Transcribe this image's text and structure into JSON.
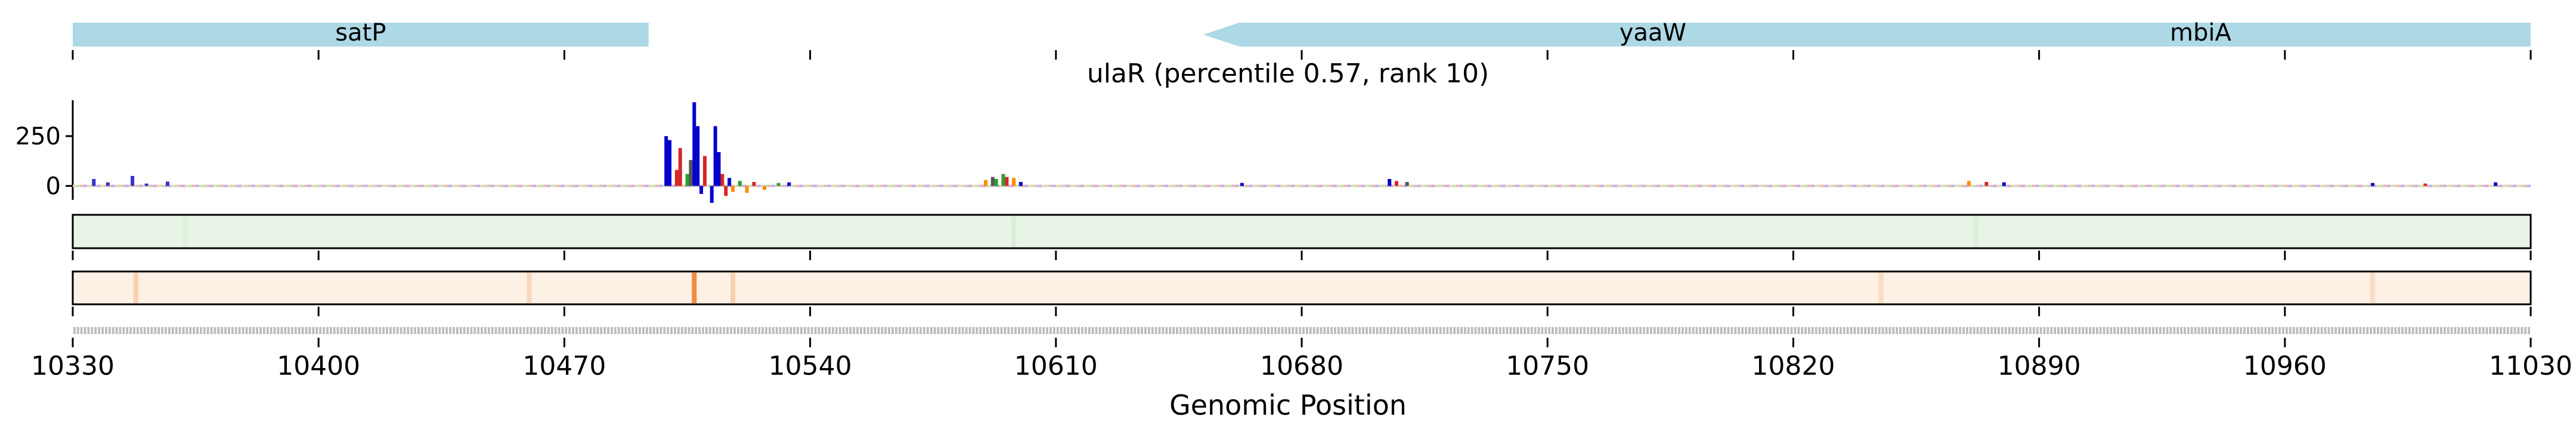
{
  "chart_data": {
    "type": "genome_track",
    "title": "ulaR (percentile 0.57, rank 10)",
    "xlabel": "Genomic Position",
    "xlim": [
      10330,
      11030
    ],
    "x_ticks": [
      10330,
      10400,
      10470,
      10540,
      10610,
      10680,
      10750,
      10820,
      10890,
      10960,
      11030
    ],
    "x_tick_labels": [
      "10330",
      "10400",
      "10470",
      "10540",
      "10610",
      "10680",
      "10750",
      "10820",
      "10890",
      "10960",
      "11030"
    ],
    "genes": [
      {
        "name": "satP",
        "start": 10330,
        "end": 10494,
        "strand": "+",
        "color": "#add8e6"
      },
      {
        "name": "yaaW",
        "start": 10652,
        "end": 11030,
        "strand": "-",
        "color": "#add8e6"
      },
      {
        "name": "mbiA",
        "start": 10830,
        "end": 11030,
        "strand": "-",
        "color": "#add8e6"
      }
    ],
    "attribution": {
      "y_ticks": [
        0,
        250
      ],
      "y_tick_labels": [
        "0",
        "250"
      ],
      "ylim": [
        -70,
        430
      ],
      "peaks": [
        {
          "x": 10336,
          "y": 35
        },
        {
          "x": 10340,
          "y": 18
        },
        {
          "x": 10347,
          "y": 50
        },
        {
          "x": 10351,
          "y": 12
        },
        {
          "x": 10357,
          "y": 22
        },
        {
          "x": 10499,
          "y": 250,
          "color": "#0000cc"
        },
        {
          "x": 10500,
          "y": 230,
          "color": "#0000cc"
        },
        {
          "x": 10502,
          "y": 80,
          "color": "#d62728"
        },
        {
          "x": 10503,
          "y": 190,
          "color": "#d62728"
        },
        {
          "x": 10505,
          "y": 60,
          "color": "#2ca02c"
        },
        {
          "x": 10506,
          "y": 130,
          "color": "#555555"
        },
        {
          "x": 10507,
          "y": 420,
          "color": "#0000cc"
        },
        {
          "x": 10508,
          "y": 300,
          "color": "#0000cc"
        },
        {
          "x": 10509,
          "y": -40,
          "color": "#0000cc"
        },
        {
          "x": 10510,
          "y": 150,
          "color": "#d62728"
        },
        {
          "x": 10512,
          "y": -85,
          "color": "#0000cc"
        },
        {
          "x": 10513,
          "y": 300,
          "color": "#0000cc"
        },
        {
          "x": 10514,
          "y": 170,
          "color": "#0000cc"
        },
        {
          "x": 10515,
          "y": 60,
          "color": "#d62728"
        },
        {
          "x": 10516,
          "y": -50,
          "color": "#d62728"
        },
        {
          "x": 10517,
          "y": 40,
          "color": "#0000cc"
        },
        {
          "x": 10518,
          "y": -30,
          "color": "#ff8c00"
        },
        {
          "x": 10520,
          "y": 25,
          "color": "#2ca02c"
        },
        {
          "x": 10522,
          "y": -35,
          "color": "#ff8c00"
        },
        {
          "x": 10524,
          "y": 20,
          "color": "#d62728"
        },
        {
          "x": 10527,
          "y": -20,
          "color": "#ff8c00"
        },
        {
          "x": 10531,
          "y": 15,
          "color": "#2ca02c"
        },
        {
          "x": 10534,
          "y": 18,
          "color": "#0000cc"
        },
        {
          "x": 10590,
          "y": 30,
          "color": "#ff8c00"
        },
        {
          "x": 10592,
          "y": 45,
          "color": "#555555"
        },
        {
          "x": 10593,
          "y": 35,
          "color": "#2ca02c"
        },
        {
          "x": 10595,
          "y": 60,
          "color": "#2ca02c"
        },
        {
          "x": 10596,
          "y": 45,
          "color": "#d62728"
        },
        {
          "x": 10598,
          "y": 40,
          "color": "#ff8c00"
        },
        {
          "x": 10600,
          "y": 20,
          "color": "#0000cc"
        },
        {
          "x": 10663,
          "y": 15,
          "color": "#0000cc"
        },
        {
          "x": 10705,
          "y": 35,
          "color": "#0000cc"
        },
        {
          "x": 10707,
          "y": 25,
          "color": "#d62728"
        },
        {
          "x": 10710,
          "y": 20,
          "color": "#555555"
        },
        {
          "x": 10870,
          "y": 25,
          "color": "#ff8c00"
        },
        {
          "x": 10875,
          "y": 20,
          "color": "#d62728"
        },
        {
          "x": 10880,
          "y": 18,
          "color": "#0000cc"
        },
        {
          "x": 10985,
          "y": 15,
          "color": "#0000cc"
        },
        {
          "x": 11000,
          "y": 12,
          "color": "#d62728"
        },
        {
          "x": 11020,
          "y": 18,
          "color": "#0000cc"
        }
      ]
    },
    "heatmap_green": {
      "color": "#e8f5e6",
      "highlights": [
        {
          "x": 10362,
          "intensity": 0.3
        },
        {
          "x": 10598,
          "intensity": 0.4
        },
        {
          "x": 10872,
          "intensity": 0.35
        }
      ]
    },
    "heatmap_orange": {
      "color": "#fdf0e4",
      "highlights": [
        {
          "x": 10348,
          "intensity": 0.3
        },
        {
          "x": 10460,
          "intensity": 0.25
        },
        {
          "x": 10507,
          "intensity": 1.0
        },
        {
          "x": 10518,
          "intensity": 0.3
        },
        {
          "x": 10845,
          "intensity": 0.2
        },
        {
          "x": 10985,
          "intensity": 0.2
        }
      ]
    }
  }
}
